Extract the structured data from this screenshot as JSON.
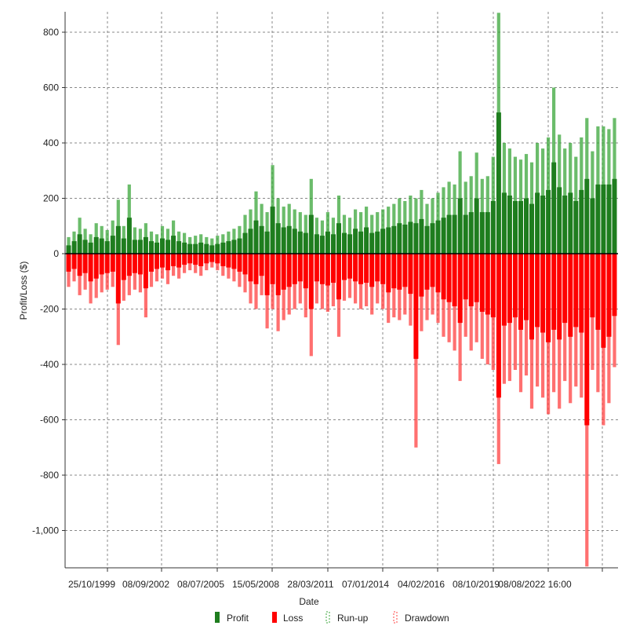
{
  "chart_data": {
    "type": "bar",
    "title": "",
    "xlabel": "Date",
    "ylabel": "Profit/Loss ($)",
    "ylim": [
      -1130,
      875
    ],
    "yticks": [
      800,
      600,
      400,
      200,
      0,
      -200,
      -400,
      -600,
      -800,
      -1000
    ],
    "ytick_labels": [
      "800",
      "600",
      "400",
      "200",
      "0",
      "-200",
      "-400",
      "-600",
      "-800",
      "-1,000"
    ],
    "xtick_labels": [
      "25/10/1999",
      "08/09/2002",
      "08/07/2005",
      "15/05/2008",
      "28/03/2011",
      "07/01/2014",
      "04/02/2016",
      "08/10/2019",
      "08/08/2022 16:00"
    ],
    "grid": true,
    "legend_position": "bottom",
    "legend": [
      "Profit",
      "Loss",
      "Run-up",
      "Drawdown"
    ],
    "colors": {
      "profit": "#1e7d1e",
      "loss": "#ff0000",
      "runup": "#3aa63a",
      "drawdown": "#ff4040"
    },
    "series": [
      {
        "name": "Run-up",
        "values": [
          60,
          80,
          130,
          90,
          70,
          110,
          100,
          85,
          120,
          195,
          100,
          250,
          95,
          90,
          110,
          80,
          70,
          100,
          90,
          120,
          80,
          75,
          60,
          65,
          70,
          60,
          55,
          65,
          70,
          80,
          90,
          100,
          140,
          160,
          225,
          180,
          150,
          320,
          200,
          170,
          180,
          160,
          150,
          140,
          270,
          130,
          120,
          150,
          130,
          210,
          140,
          130,
          160,
          150,
          170,
          140,
          150,
          160,
          170,
          180,
          200,
          190,
          210,
          200,
          230,
          180,
          200,
          220,
          240,
          260,
          250,
          370,
          260,
          280,
          365,
          270,
          280,
          350,
          870,
          400,
          380,
          350,
          340,
          360,
          330,
          400,
          380,
          420,
          600,
          430,
          380,
          400,
          350,
          420,
          490,
          370,
          460,
          460,
          450,
          490
        ]
      },
      {
        "name": "Profit",
        "values": [
          30,
          45,
          70,
          50,
          40,
          60,
          55,
          45,
          65,
          100,
          55,
          130,
          50,
          50,
          60,
          45,
          40,
          55,
          50,
          65,
          45,
          40,
          35,
          35,
          40,
          35,
          30,
          35,
          40,
          45,
          50,
          55,
          75,
          90,
          120,
          100,
          80,
          170,
          110,
          95,
          100,
          90,
          80,
          75,
          140,
          70,
          65,
          80,
          70,
          110,
          75,
          70,
          90,
          80,
          95,
          75,
          80,
          90,
          95,
          100,
          110,
          105,
          115,
          110,
          125,
          100,
          110,
          120,
          130,
          140,
          140,
          200,
          140,
          150,
          200,
          150,
          150,
          190,
          510,
          220,
          210,
          190,
          190,
          200,
          180,
          220,
          210,
          230,
          330,
          240,
          210,
          220,
          190,
          230,
          270,
          200,
          250,
          250,
          250,
          270
        ]
      },
      {
        "name": "Drawdown",
        "values": [
          -120,
          -100,
          -150,
          -130,
          -180,
          -160,
          -140,
          -130,
          -120,
          -330,
          -170,
          -150,
          -130,
          -140,
          -230,
          -120,
          -100,
          -90,
          -110,
          -80,
          -90,
          -70,
          -60,
          -70,
          -80,
          -60,
          -50,
          -60,
          -80,
          -90,
          -100,
          -120,
          -140,
          -180,
          -200,
          -150,
          -270,
          -200,
          -280,
          -240,
          -220,
          -200,
          -180,
          -230,
          -370,
          -180,
          -200,
          -210,
          -190,
          -300,
          -170,
          -160,
          -180,
          -200,
          -190,
          -220,
          -180,
          -200,
          -250,
          -230,
          -240,
          -220,
          -260,
          -700,
          -280,
          -240,
          -220,
          -250,
          -300,
          -320,
          -350,
          -460,
          -300,
          -350,
          -320,
          -380,
          -400,
          -420,
          -760,
          -470,
          -460,
          -420,
          -500,
          -440,
          -560,
          -480,
          -520,
          -580,
          -500,
          -560,
          -460,
          -540,
          -480,
          -520,
          -1130,
          -420,
          -500,
          -620,
          -540,
          -410
        ]
      },
      {
        "name": "Loss",
        "values": [
          -65,
          -55,
          -80,
          -70,
          -100,
          -90,
          -75,
          -70,
          -65,
          -180,
          -95,
          -80,
          -70,
          -75,
          -125,
          -65,
          -55,
          -50,
          -60,
          -45,
          -50,
          -40,
          -35,
          -40,
          -45,
          -35,
          -30,
          -35,
          -45,
          -50,
          -55,
          -65,
          -75,
          -100,
          -110,
          -80,
          -150,
          -110,
          -150,
          -130,
          -120,
          -110,
          -100,
          -125,
          -200,
          -100,
          -110,
          -115,
          -105,
          -165,
          -95,
          -90,
          -100,
          -110,
          -105,
          -120,
          -100,
          -110,
          -140,
          -125,
          -130,
          -120,
          -145,
          -380,
          -155,
          -130,
          -120,
          -140,
          -165,
          -175,
          -190,
          -250,
          -165,
          -190,
          -175,
          -210,
          -220,
          -230,
          -520,
          -260,
          -250,
          -230,
          -275,
          -240,
          -310,
          -265,
          -285,
          -320,
          -275,
          -310,
          -250,
          -300,
          -265,
          -285,
          -620,
          -230,
          -275,
          -340,
          -300,
          -225
        ]
      }
    ]
  }
}
